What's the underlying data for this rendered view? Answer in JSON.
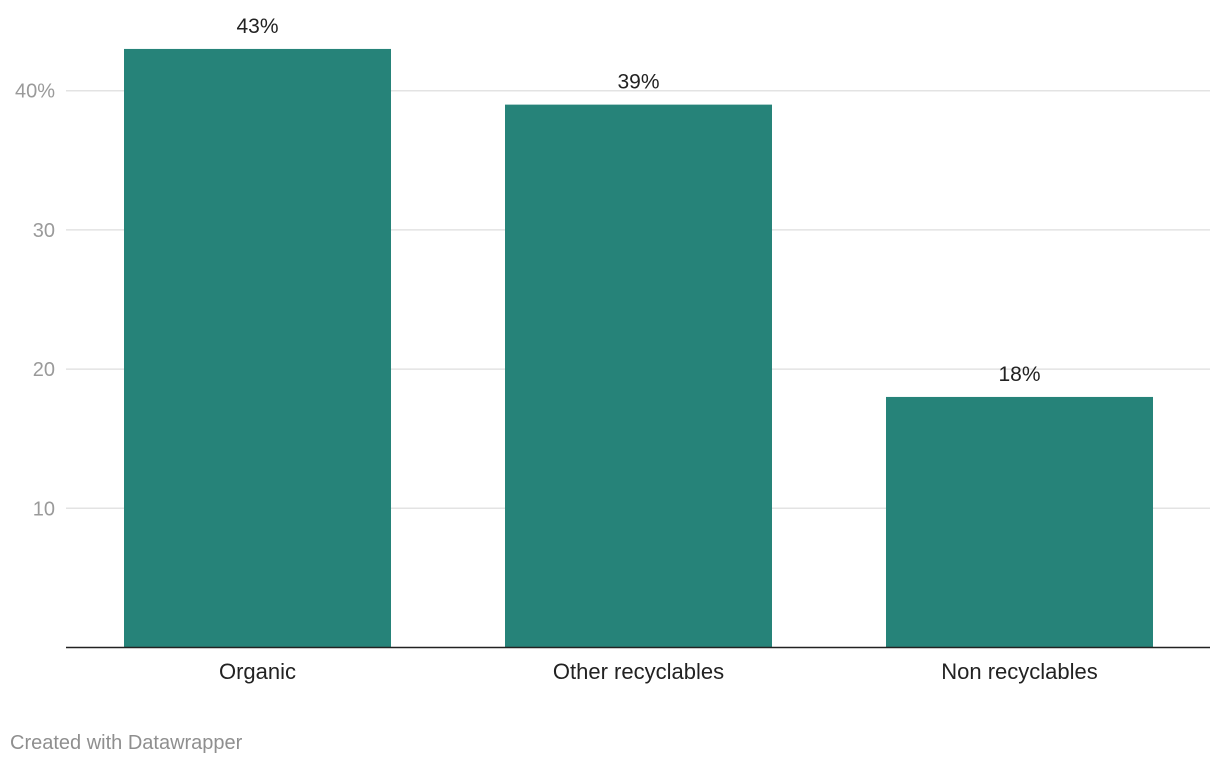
{
  "chart_data": {
    "type": "bar",
    "categories": [
      "Organic",
      "Other recyclables",
      "Non recyclables"
    ],
    "values": [
      43,
      39,
      18
    ],
    "value_labels": [
      "43%",
      "39%",
      "18%"
    ],
    "title": "",
    "xlabel": "",
    "ylabel": "",
    "ylim": [
      0,
      46
    ],
    "y_ticks": [
      10,
      20,
      30,
      40
    ],
    "y_tick_labels": [
      "10",
      "20",
      "30",
      "40%"
    ],
    "grid": true,
    "legend": "none",
    "bar_color": "#268379"
  },
  "footer": {
    "credit": "Created with Datawrapper"
  }
}
